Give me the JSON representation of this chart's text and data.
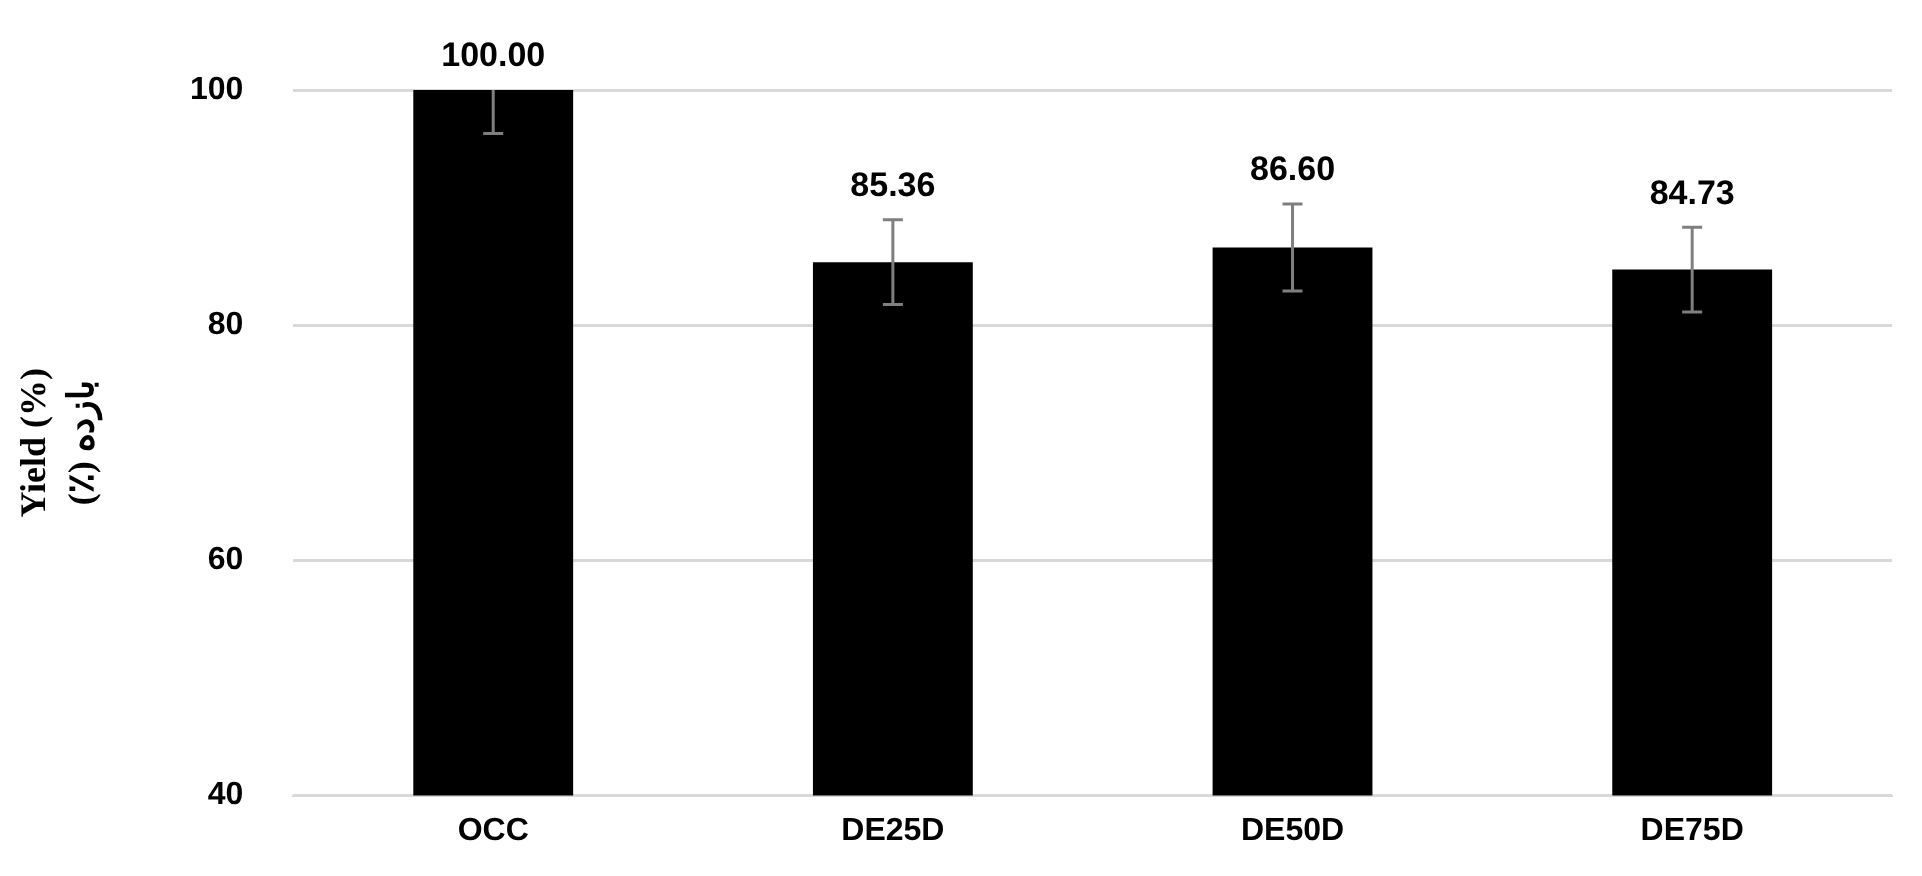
{
  "chart_data": {
    "type": "bar",
    "ylabel": "Yield (%)\nبازده (٪)",
    "categories": [
      "OCC",
      "DE25D",
      "DE50D",
      "DE75D"
    ],
    "values": [
      100.0,
      85.36,
      86.6,
      84.73
    ],
    "errors": [
      3.7,
      3.6,
      3.7,
      3.6
    ],
    "color": "#000000",
    "value_labels": [
      "100.00",
      "85.36",
      "86.60",
      "84.73"
    ],
    "ylim": [
      40,
      100
    ],
    "yticks": [
      40,
      60,
      80,
      100
    ],
    "grid": "y",
    "legend": false
  }
}
